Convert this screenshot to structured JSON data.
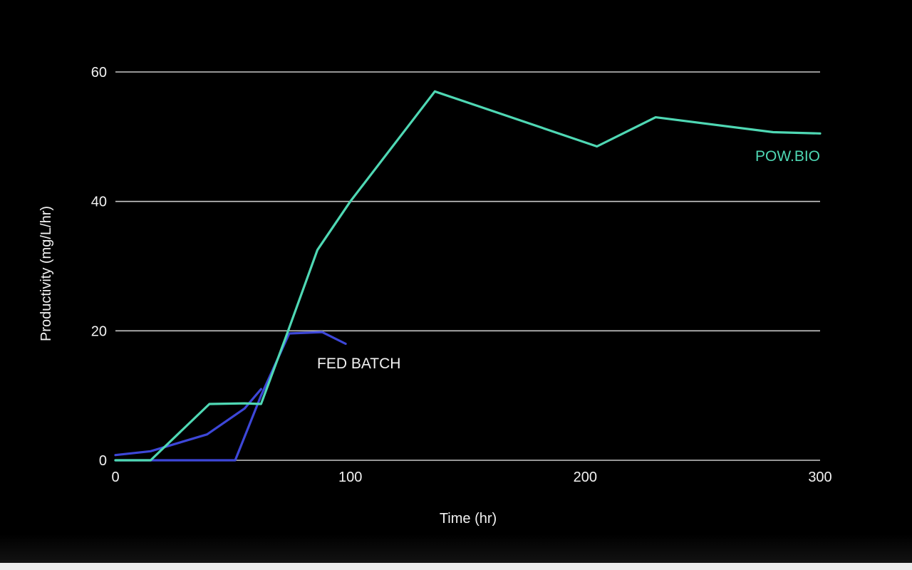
{
  "chart_data": {
    "type": "line",
    "title": "",
    "xlabel": "Time (hr)",
    "ylabel": "Productivity (mg/L/hr)",
    "xlim": [
      0,
      300
    ],
    "ylim": [
      0,
      60
    ],
    "x_ticks": [
      0,
      100,
      200,
      300
    ],
    "y_ticks": [
      0,
      20,
      40,
      60
    ],
    "grid": "horizontal",
    "legend": "inline labels",
    "series": [
      {
        "name": "POW.BIO",
        "color": "#4fd8b4",
        "x": [
          0,
          15,
          40,
          55,
          62,
          73,
          86,
          100,
          136,
          205,
          230,
          280,
          300
        ],
        "y": [
          0,
          0,
          8.7,
          8.8,
          8.7,
          19.5,
          32.5,
          40,
          57,
          48.5,
          53,
          50.7,
          50.5
        ]
      },
      {
        "name": "",
        "color": "#3d47d8",
        "x": [
          0,
          15,
          39,
          55,
          62
        ],
        "y": [
          0.8,
          1.4,
          4,
          8,
          11
        ]
      },
      {
        "name": "FED BATCH",
        "color": "#3d47d8",
        "x": [
          0,
          51,
          62,
          74,
          88,
          98
        ],
        "y": [
          0,
          0,
          10,
          19.6,
          19.8,
          18
        ]
      }
    ]
  }
}
